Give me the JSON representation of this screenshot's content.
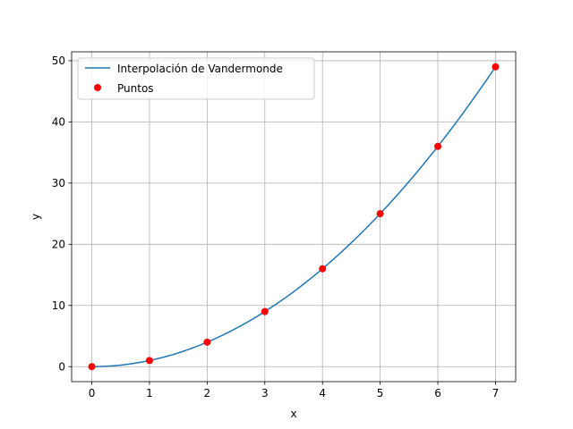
{
  "chart_data": {
    "type": "line",
    "title": "",
    "xlabel": "x",
    "ylabel": "y",
    "xlim": [
      -0.35,
      7.35
    ],
    "ylim": [
      -2.45,
      51.45
    ],
    "xticks": [
      0,
      1,
      2,
      3,
      4,
      5,
      6,
      7
    ],
    "yticks": [
      0,
      10,
      20,
      30,
      40,
      50
    ],
    "grid": true,
    "legend_position": "top-left",
    "series": [
      {
        "name": "Interpolación de Vandermonde",
        "kind": "line",
        "color": "#1f77b4",
        "function": "y = x^2",
        "x_range": [
          0,
          7
        ]
      },
      {
        "name": "Puntos",
        "kind": "scatter",
        "color": "#ff0000",
        "x": [
          0,
          1,
          2,
          3,
          4,
          5,
          6,
          7
        ],
        "y": [
          0,
          1,
          4,
          9,
          16,
          25,
          36,
          49
        ]
      }
    ]
  }
}
